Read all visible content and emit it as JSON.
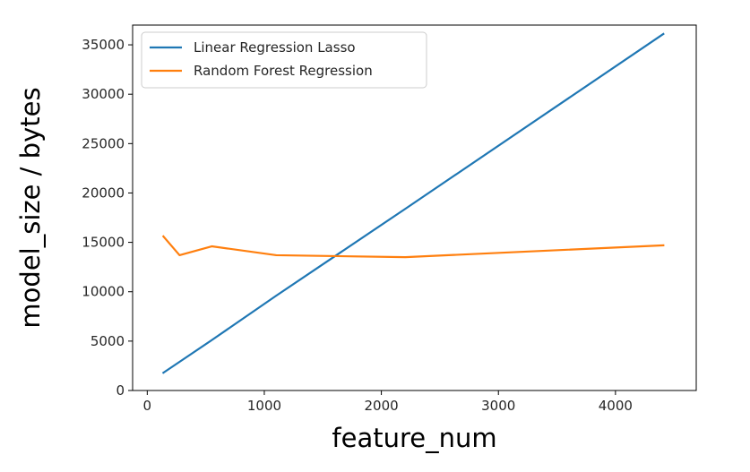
{
  "chart_data": {
    "type": "line",
    "title": "",
    "xlabel": "feature_num",
    "ylabel": "model_size / bytes",
    "xlim": [
      -125,
      4690
    ],
    "ylim": [
      0,
      37000
    ],
    "xticks": [
      0,
      1000,
      2000,
      3000,
      4000
    ],
    "xtick_labels": [
      "0",
      "1000",
      "2000",
      "3000",
      "4000"
    ],
    "yticks": [
      0,
      5000,
      10000,
      15000,
      20000,
      25000,
      30000,
      35000
    ],
    "ytick_labels": [
      "0",
      "5000",
      "10000",
      "15000",
      "20000",
      "25000",
      "30000",
      "35000"
    ],
    "grid": false,
    "legend_position": "top-left",
    "series": [
      {
        "name": "Linear Regression Lasso",
        "color": "#1f77b4",
        "x": [
          138,
          276,
          551,
          1102,
          2205,
          4409
        ],
        "y": [
          1800,
          2900,
          5100,
          9600,
          18400,
          36100
        ]
      },
      {
        "name": "Random Forest Regression",
        "color": "#ff7f0e",
        "x": [
          138,
          276,
          551,
          1102,
          2205,
          4409
        ],
        "y": [
          15600,
          13700,
          14600,
          13700,
          13500,
          14700
        ]
      }
    ]
  }
}
